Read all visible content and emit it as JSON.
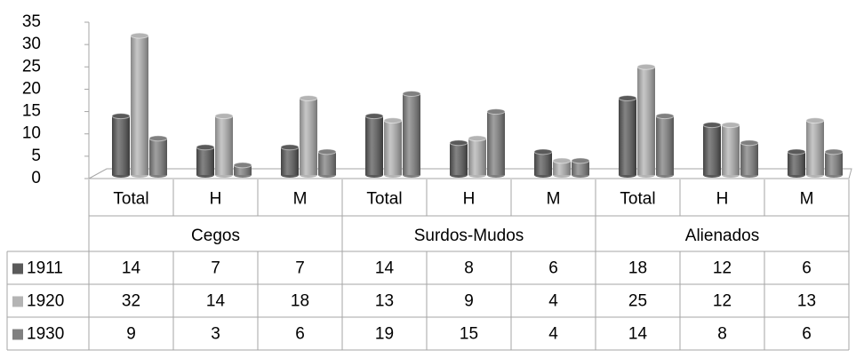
{
  "chart_data": {
    "type": "bar3d",
    "categories": [
      "Total",
      "H",
      "M",
      "Total",
      "H",
      "M",
      "Total",
      "H",
      "M"
    ],
    "category_groups": [
      "Cegos",
      "Surdos-Mudos",
      "Alienados"
    ],
    "series": [
      {
        "name": "1911",
        "color": "#5a5a5a",
        "values": [
          14,
          7,
          7,
          14,
          8,
          6,
          18,
          12,
          6
        ]
      },
      {
        "name": "1920",
        "color": "#b4b4b4",
        "values": [
          32,
          14,
          18,
          13,
          9,
          4,
          25,
          12,
          13
        ]
      },
      {
        "name": "1930",
        "color": "#808080",
        "values": [
          9,
          3,
          6,
          19,
          15,
          4,
          14,
          8,
          6
        ]
      }
    ],
    "ylim": [
      0,
      35
    ],
    "yticks": [
      0,
      5,
      10,
      15,
      20,
      25,
      30,
      35
    ],
    "data_table": true
  }
}
